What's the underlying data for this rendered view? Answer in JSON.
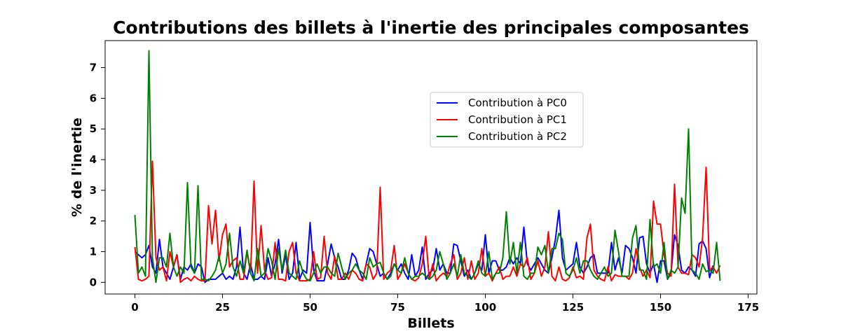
{
  "chart_data": {
    "type": "line",
    "title": "Contributions des billets à l'inertie des principales composantes",
    "xlabel": "Billets",
    "ylabel": "% de l'inertie",
    "xlim": [
      -8.5,
      177.5
    ],
    "ylim": [
      -0.38,
      7.88
    ],
    "xticks": [
      0,
      25,
      50,
      75,
      100,
      125,
      150,
      175
    ],
    "yticks": [
      0,
      1,
      2,
      3,
      4,
      5,
      6,
      7
    ],
    "grid": false,
    "legend_position": "center-right",
    "series": [
      {
        "name": "Contribution à PC0",
        "color": "#0000ff",
        "values": [
          1.0,
          0.9,
          0.8,
          0.9,
          1.2,
          0.5,
          0.3,
          1.4,
          0.5,
          0.3,
          0.1,
          0.5,
          0.9,
          0.1,
          0.5,
          0.4,
          0.6,
          0.3,
          0.6,
          0.5,
          0.0,
          0.1,
          0.1,
          0.1,
          0.2,
          0.3,
          0.1,
          0.2,
          0.1,
          0.5,
          1.8,
          0.3,
          0.1,
          0.6,
          0.1,
          0.1,
          0.2,
          0.1,
          0.8,
          0.2,
          0.6,
          1.4,
          0.3,
          0.9,
          0.1,
          0.3,
          1.3,
          0.1,
          0.4,
          0.3,
          1.95,
          0.4,
          0.05,
          0.05,
          0.05,
          0.6,
          1.25,
          0.8,
          0.5,
          0.1,
          0.1,
          0.4,
          0.95,
          0.8,
          0.4,
          0.1,
          0.6,
          1.1,
          1.0,
          0.6,
          0.2,
          0.3,
          0.1,
          0.3,
          0.6,
          0.4,
          0.6,
          0.3,
          0.1,
          0.9,
          0.2,
          0.4,
          1.15,
          0.1,
          0.3,
          0.4,
          1.1,
          0.4,
          0.6,
          0.3,
          0.3,
          1.25,
          1.2,
          0.7,
          0.2,
          0.4,
          0.1,
          0.3,
          0.6,
          0.4,
          1.55,
          0.3,
          0.7,
          0.7,
          0.4,
          0.4,
          0.5,
          0.8,
          0.6,
          0.8,
          0.6,
          1.8,
          0.6,
          0.4,
          0.6,
          0.8,
          0.6,
          0.4,
          0.3,
          0.8,
          1.4,
          2.35,
          0.8,
          0.4,
          0.5,
          0.6,
          1.3,
          0.5,
          0.3,
          0.5,
          0.8,
          0.9,
          0.3,
          0.3,
          0.3,
          0.3,
          1.3,
          0.4,
          0.8,
          0.3,
          1.2,
          1.1,
          0.8,
          0.3,
          1.45,
          1.5,
          0.6,
          0.3,
          0.6,
          0.0,
          0.7,
          0.7,
          0.1,
          0.3,
          1.55,
          1.2,
          0.4,
          0.3,
          0.5,
          0.4,
          0.2,
          1.25,
          1.35,
          1.1,
          0.15,
          0.55
        ]
      },
      {
        "name": "Contribution à PC1",
        "color": "#ff0000",
        "values": [
          1.15,
          0.1,
          0.05,
          0.1,
          0.2,
          3.95,
          0.8,
          0.4,
          0.5,
          0.05,
          1.0,
          0.5,
          0.9,
          0.0,
          0.1,
          0.15,
          0.05,
          0.2,
          0.1,
          0.05,
          0.05,
          2.5,
          1.25,
          2.35,
          0.7,
          1.55,
          1.9,
          0.5,
          0.7,
          0.8,
          0.1,
          0.1,
          1.0,
          0.3,
          3.3,
          0.3,
          1.85,
          0.4,
          0.1,
          0.15,
          1.3,
          0.1,
          0.1,
          0.05,
          1.0,
          1.3,
          0.3,
          0.05,
          0.05,
          0.05,
          0.1,
          1.0,
          0.1,
          0.15,
          1.5,
          0.3,
          0.1,
          0.85,
          0.1,
          0.1,
          0.3,
          0.1,
          0.4,
          0.3,
          0.1,
          0.05,
          0.6,
          0.5,
          0.1,
          0.3,
          3.1,
          0.1,
          0.3,
          0.4,
          1.2,
          0.1,
          0.3,
          0.6,
          0.3,
          0.1,
          0.05,
          0.15,
          0.6,
          1.5,
          0.1,
          0.6,
          0.05,
          0.2,
          0.3,
          0.2,
          0.6,
          0.9,
          0.1,
          0.3,
          0.8,
          0.1,
          0.7,
          0.1,
          0.3,
          1.1,
          0.2,
          0.3,
          0.05,
          0.3,
          0.5,
          0.1,
          0.2,
          0.2,
          0.5,
          0.2,
          0.6,
          0.5,
          0.8,
          0.1,
          0.3,
          0.7,
          0.2,
          0.5,
          1.65,
          0.2,
          0.05,
          0.5,
          0.1,
          0.05,
          0.15,
          0.5,
          0.15,
          0.2,
          0.1,
          1.45,
          1.9,
          0.4,
          0.2,
          0.1,
          0.05,
          0.5,
          0.05,
          0.25,
          0.2,
          0.2,
          0.2,
          0.1,
          0.3,
          1.1,
          0.5,
          0.2,
          0.4,
          0.15,
          2.65,
          1.9,
          1.9,
          0.9,
          0.3,
          0.2,
          3.2,
          0.5,
          0.3,
          0.3,
          0.25,
          0.9,
          0.8,
          0.5,
          1.45,
          3.75,
          0.4,
          0.5,
          0.3,
          0.55
        ]
      },
      {
        "name": "Contribution à PC2",
        "color": "#008000",
        "values": [
          2.2,
          0.3,
          0.5,
          0.2,
          7.55,
          0.8,
          0.0,
          0.8,
          0.8,
          0.5,
          1.6,
          0.5,
          0.2,
          0.5,
          0.3,
          3.25,
          0.5,
          0.3,
          3.15,
          0.1,
          0.1,
          0.05,
          0.2,
          0.4,
          0.85,
          0.3,
          0.6,
          1.6,
          0.5,
          0.2,
          0.7,
          0.3,
          1.05,
          0.3,
          0.05,
          1.1,
          0.2,
          0.3,
          1.1,
          0.7,
          0.1,
          1.1,
          0.4,
          1.05,
          0.3,
          0.2,
          0.1,
          0.7,
          0.3,
          0.1,
          0.05,
          0.3,
          0.6,
          0.3,
          0.5,
          0.5,
          0.3,
          0.2,
          0.95,
          0.5,
          0.1,
          0.3,
          0.4,
          0.6,
          0.4,
          0.3,
          0.1,
          0.8,
          0.5,
          0.6,
          0.65,
          0.3,
          0.1,
          0.2,
          0.6,
          0.4,
          0.3,
          0.8,
          0.3,
          0.1,
          0.2,
          0.2,
          0.3,
          0.2,
          0.1,
          0.2,
          0.4,
          1.0,
          0.6,
          0.1,
          0.3,
          0.6,
          0.2,
          0.9,
          0.3,
          0.2,
          0.1,
          0.3,
          0.7,
          0.3,
          0.2,
          1.0,
          0.1,
          0.3,
          0.3,
          0.8,
          2.3,
          0.6,
          1.3,
          0.3,
          1.3,
          0.2,
          0.1,
          0.3,
          0.3,
          1.15,
          0.9,
          1.2,
          0.3,
          1.1,
          1.1,
          1.6,
          1.4,
          0.3,
          0.2,
          0.4,
          0.8,
          0.3,
          0.7,
          0.7,
          0.4,
          0.2,
          0.1,
          0.3,
          0.5,
          0.2,
          0.3,
          1.7,
          1.0,
          0.2,
          0.2,
          0.2,
          1.45,
          1.85,
          0.4,
          0.4,
          0.1,
          2.05,
          0.5,
          0.6,
          0.3,
          1.3,
          0.1,
          0.4,
          0.3,
          0.5,
          2.75,
          2.25,
          5.0,
          0.4,
          0.3,
          0.1,
          0.6,
          0.35,
          0.4,
          0.3,
          1.3,
          0.05
        ]
      }
    ]
  }
}
